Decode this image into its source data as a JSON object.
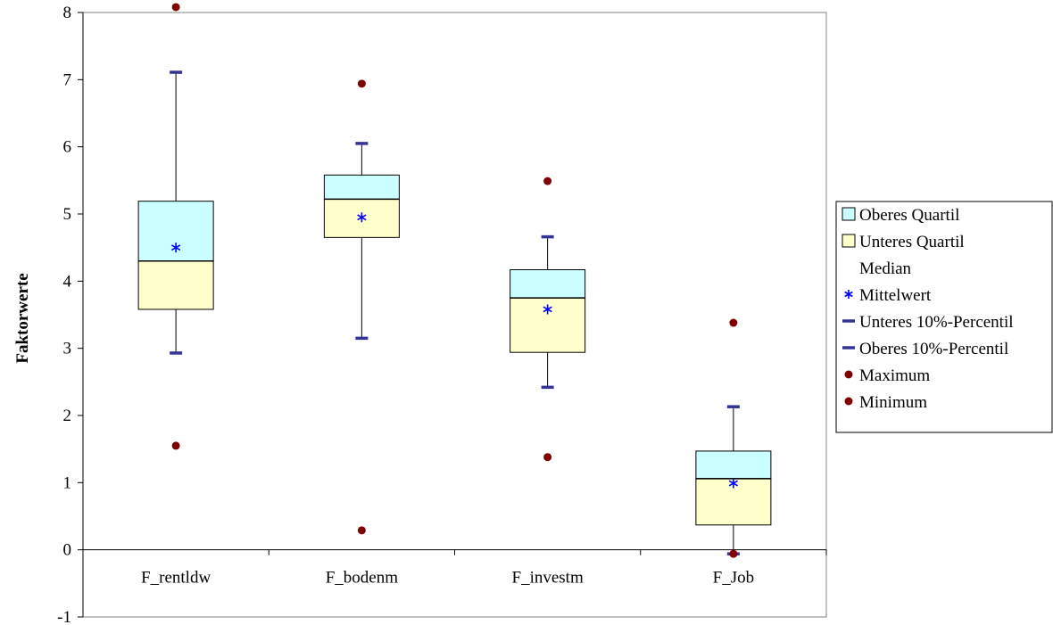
{
  "chart_data": {
    "type": "box",
    "ylabel": "Faktorwerte",
    "ylim": [
      -1,
      8
    ],
    "yticks": [
      -1,
      0,
      1,
      2,
      3,
      4,
      5,
      6,
      7,
      8
    ],
    "categories": [
      "F_rentldw",
      "F_bodenm",
      "F_investm",
      "F_Job"
    ],
    "boxes": [
      {
        "category": "F_rentldw",
        "minimum": 1.55,
        "p10": 2.93,
        "q1": 3.58,
        "median": 4.3,
        "q3": 5.19,
        "p90": 7.11,
        "maximum": 8.08,
        "mean": 4.5
      },
      {
        "category": "F_bodenm",
        "minimum": 0.29,
        "p10": 3.15,
        "q1": 4.65,
        "median": 5.22,
        "q3": 5.58,
        "p90": 6.05,
        "maximum": 6.94,
        "mean": 4.95
      },
      {
        "category": "F_investm",
        "minimum": 1.38,
        "p10": 2.42,
        "q1": 2.94,
        "median": 3.75,
        "q3": 4.17,
        "p90": 4.66,
        "maximum": 5.49,
        "mean": 3.58
      },
      {
        "category": "F_Job",
        "minimum": -0.06,
        "p10": -0.06,
        "q1": 0.37,
        "median": 1.06,
        "q3": 1.47,
        "p90": 2.13,
        "maximum": 3.38,
        "mean": 0.99
      }
    ],
    "legend_position": "right",
    "legend": [
      {
        "label": "Oberes Quartil",
        "symbol": "box",
        "color": "#ccffff"
      },
      {
        "label": "Unteres Quartil",
        "symbol": "box",
        "color": "#ffffcc"
      },
      {
        "label": "Median",
        "symbol": "none",
        "color": "#000000"
      },
      {
        "label": "Mittelwert",
        "symbol": "star",
        "color": "#0000ff"
      },
      {
        "label": "Unteres 10%-Percentil",
        "symbol": "dash",
        "color": "#333399"
      },
      {
        "label": "Oberes 10%-Percentil",
        "symbol": "dash",
        "color": "#333399"
      },
      {
        "label": "Maximum",
        "symbol": "dot",
        "color": "#800000"
      },
      {
        "label": "Minimum",
        "symbol": "dot",
        "color": "#800000"
      }
    ],
    "colors": {
      "upper_quartile": "#ccffff",
      "lower_quartile": "#ffffcc",
      "mean": "#0000ff",
      "percentile": "#333399",
      "extreme": "#800000"
    }
  }
}
